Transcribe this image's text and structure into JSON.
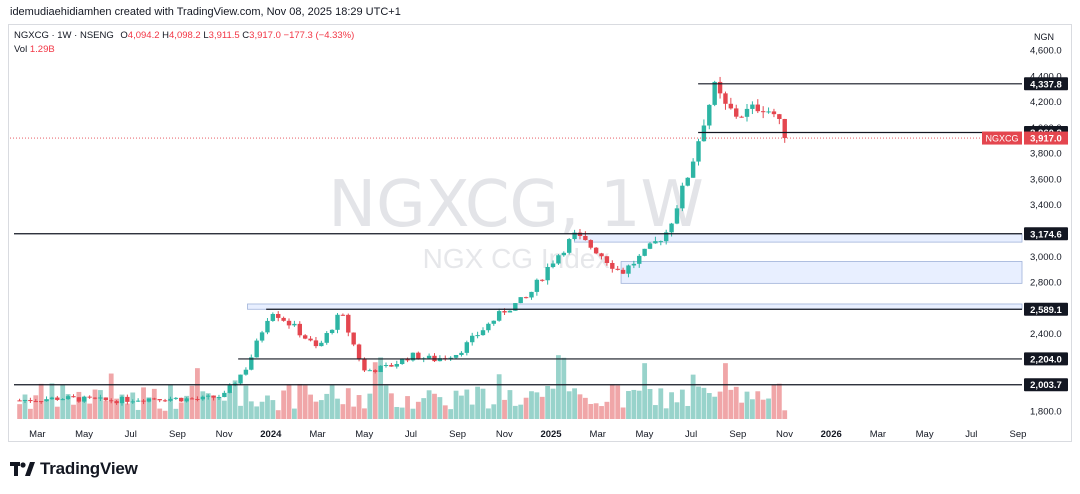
{
  "header": {
    "created_by": "idemudiaehidiamhen created with TradingView.com, Nov 08, 2025 18:29 UTC+1"
  },
  "legend": {
    "symbol": "NGXCG · 1W · NSENG",
    "open_label": "O",
    "open": "4,094.2",
    "high_label": "H",
    "high": "4,098.2",
    "low_label": "L",
    "low": "3,911.5",
    "close_label": "C",
    "close": "3,917.0",
    "change": "−177.3 (−4.33%)",
    "vol_label": "Vol",
    "vol_value": "1.29B"
  },
  "currency": "NGN",
  "watermark": {
    "main": "NGXCG, 1W",
    "sub": "NGX CG Index"
  },
  "brand": {
    "name": "TradingView"
  },
  "colors": {
    "up": "#2db5a4",
    "down": "#e4464f",
    "up_vol": "#98d3cb",
    "down_vol": "#f0a6a8",
    "zone_fill": "#e8efff",
    "zone_stroke": "#9fb2d9",
    "last_price": "#e4464f"
  },
  "chart_data": {
    "type": "candlestick",
    "interval": "1W",
    "price_scale": {
      "min": 1800,
      "max": 4600,
      "ticks": [
        "1,800.0",
        "2,000.0",
        "2,200.0",
        "2,400.0",
        "2,600.0",
        "2,800.0",
        "3,000.0",
        "3,200.0",
        "3,400.0",
        "3,600.0",
        "3,800.0",
        "4,000.0",
        "4,200.0",
        "4,400.0",
        "4,600.0"
      ]
    },
    "time_axis": [
      "Mar",
      "May",
      "Jul",
      "Sep",
      "Nov",
      "2024",
      "Mar",
      "May",
      "Jul",
      "Sep",
      "Nov",
      "2025",
      "Mar",
      "May",
      "Jul",
      "Sep",
      "Nov",
      "2026",
      "Mar",
      "May",
      "Jul",
      "Sep"
    ],
    "horizontal_levels": [
      {
        "price": 4337.8,
        "label": "4,337.8"
      },
      {
        "price": 3960.3,
        "label": "3,960.3"
      },
      {
        "price": 3174.6,
        "label": "3,174.6"
      },
      {
        "price": 2589.1,
        "label": "2,589.1"
      },
      {
        "price": 2204.0,
        "label": "2,204.0"
      },
      {
        "price": 2003.7,
        "label": "2,003.7"
      }
    ],
    "last_price": {
      "symbol": "NGXCG",
      "label": "3,917.0",
      "price": 3917.0
    },
    "zones": [
      {
        "from": 3174.6,
        "to": 3110,
        "start": "2025-02"
      },
      {
        "from": 2960,
        "to": 2790,
        "start": "2025-04"
      },
      {
        "from": 2630,
        "to": 2589.1,
        "start": "2023-12"
      }
    ],
    "series": [
      {
        "name": "Price",
        "keypoints": [
          [
            "2023-02",
            1880
          ],
          [
            "2023-04",
            1900
          ],
          [
            "2023-06",
            1880
          ],
          [
            "2023-08",
            1900
          ],
          [
            "2023-10",
            1890
          ],
          [
            "2023-11",
            1920
          ],
          [
            "2023-12",
            2150
          ],
          [
            "2024-01",
            2590
          ],
          [
            "2024-02",
            2450
          ],
          [
            "2024-03",
            2280
          ],
          [
            "2024-04",
            2560
          ],
          [
            "2024-05",
            2110
          ],
          [
            "2024-06",
            2140
          ],
          [
            "2024-07",
            2230
          ],
          [
            "2024-08",
            2200
          ],
          [
            "2024-09",
            2250
          ],
          [
            "2024-10",
            2420
          ],
          [
            "2024-11",
            2580
          ],
          [
            "2024-12",
            2680
          ],
          [
            "2025-01",
            2950
          ],
          [
            "2025-02",
            3160
          ],
          [
            "2025-03",
            3040
          ],
          [
            "2025-04",
            2870
          ],
          [
            "2025-05",
            3020
          ],
          [
            "2025-06",
            3200
          ],
          [
            "2025-07",
            3700
          ],
          [
            "2025-07-15",
            4000
          ],
          [
            "2025-08",
            4310
          ],
          [
            "2025-08-15",
            4160
          ],
          [
            "2025-09",
            4090
          ],
          [
            "2025-10",
            4170
          ],
          [
            "2025-10-20",
            4094.2
          ],
          [
            "2025-11",
            3917.0
          ]
        ]
      }
    ]
  }
}
